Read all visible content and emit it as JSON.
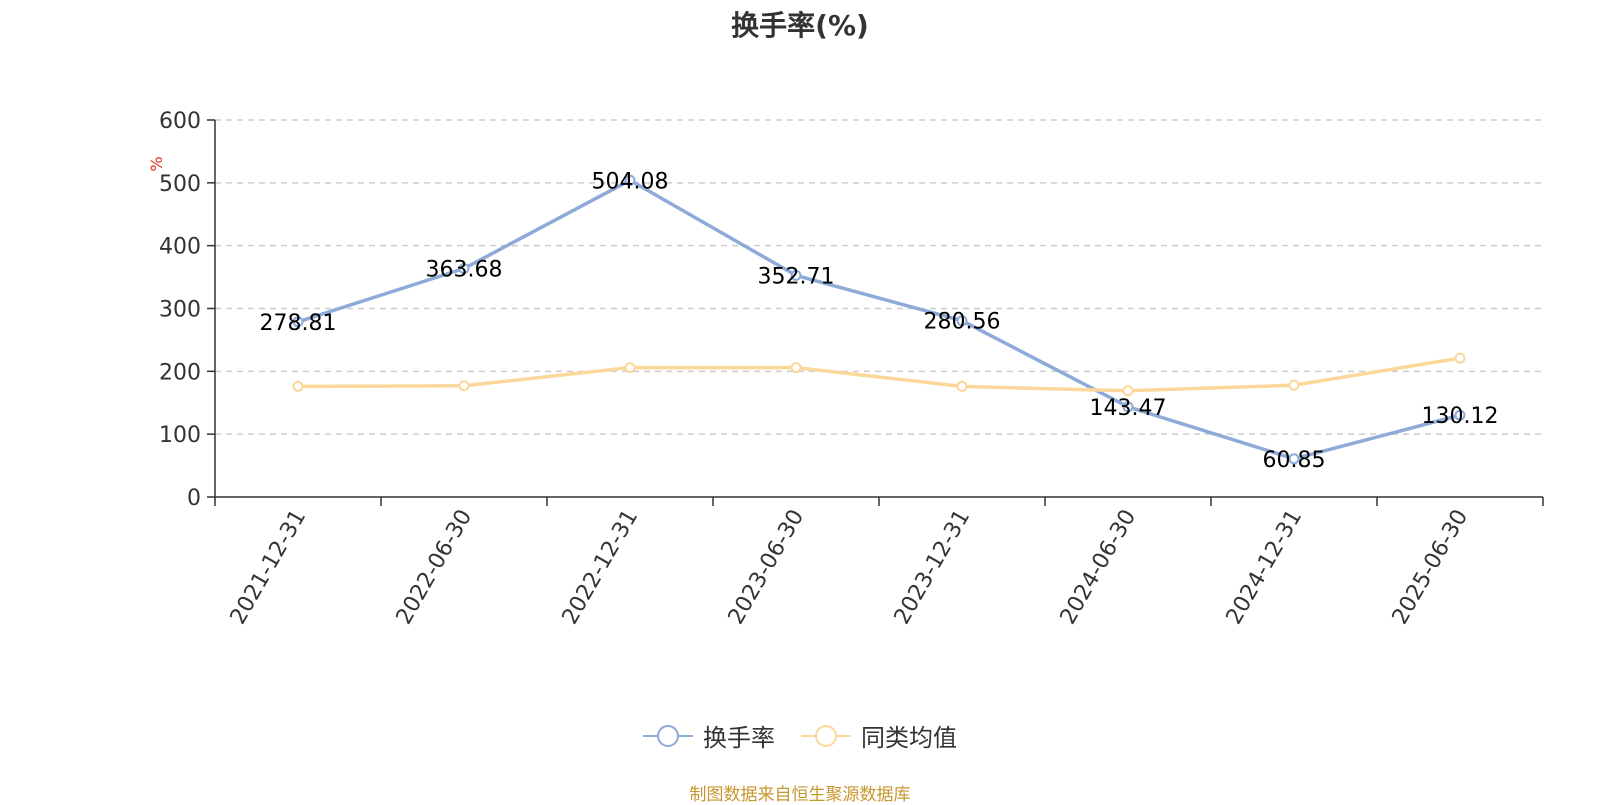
{
  "chart_data": {
    "type": "line",
    "title": "换手率(%)",
    "ylabel": "%",
    "xlabel": "",
    "ylim": [
      0,
      600
    ],
    "yticks": [
      0,
      100,
      200,
      300,
      400,
      500,
      600
    ],
    "grid": true,
    "legend_position": "bottom",
    "categories": [
      "2021-12-31",
      "2022-06-30",
      "2022-12-31",
      "2023-06-30",
      "2023-12-31",
      "2024-06-30",
      "2024-12-31",
      "2025-06-30"
    ],
    "series": [
      {
        "name": "换手率",
        "color": "#8eaad8",
        "values": [
          278.81,
          363.68,
          504.08,
          352.71,
          280.56,
          143.47,
          60.85,
          130.12
        ],
        "labels": [
          "278.81",
          "363.68",
          "504.08",
          "352.71",
          "280.56",
          "143.47",
          "60.85",
          "130.12"
        ]
      },
      {
        "name": "同类均值",
        "color": "#fbd89a",
        "values": [
          176,
          177,
          206,
          206,
          176,
          169,
          178,
          221
        ]
      }
    ],
    "source_note": "制图数据来自恒生聚源数据库"
  }
}
